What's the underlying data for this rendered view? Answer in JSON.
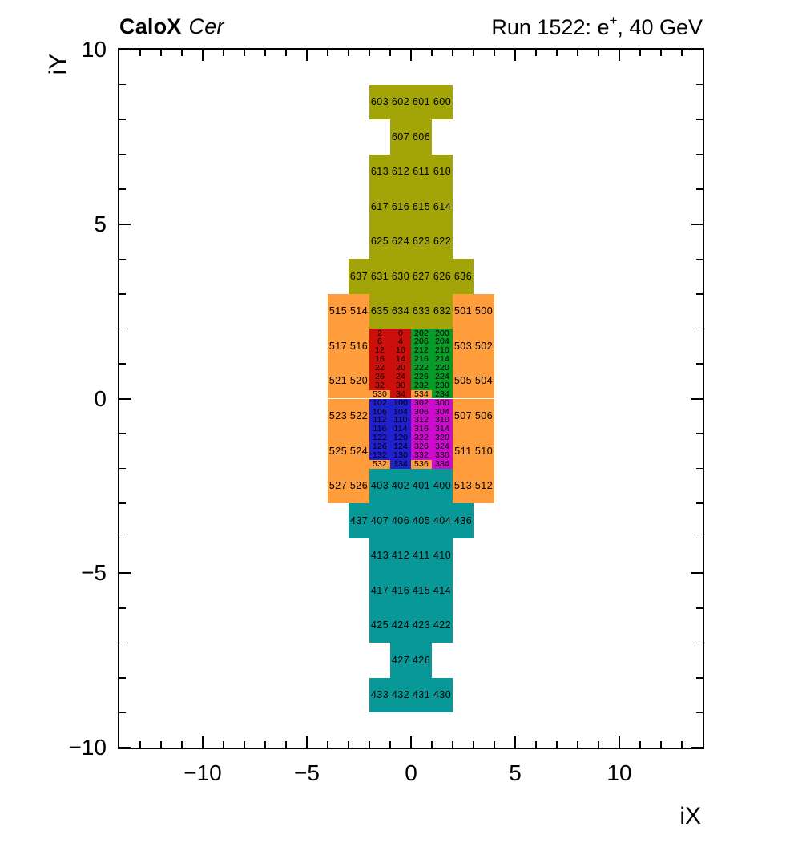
{
  "chart_data": {
    "type": "heatmap",
    "title_left_bold": "CaloX",
    "title_left_italic": "Cer",
    "title_right": {
      "pre": "Run 1522: e",
      "sup": "+",
      "post": ", 40 GeV"
    },
    "xlabel": "iX",
    "ylabel": "iY",
    "xlim": [
      -14,
      14
    ],
    "ylim": [
      -10,
      10
    ],
    "x_major_ticks": [
      -10,
      -5,
      0,
      5,
      10
    ],
    "y_major_ticks": [
      -10,
      -5,
      0,
      5,
      10
    ],
    "x_tick_labels": [
      "−10",
      "−5",
      "0",
      "5",
      "10"
    ],
    "y_tick_labels": [
      "−10",
      "−5",
      "0",
      "5",
      "10"
    ],
    "minor_tick_step": 1,
    "grid": false,
    "background": "#ffffff",
    "cell_text_color": "#000000",
    "frame_color": "#000000",
    "groups": [
      {
        "name": "upper-tower-olive",
        "color": "#a2a408",
        "cells": [
          [
            "603",
            -2,
            8,
            1,
            1
          ],
          [
            "602",
            -1,
            8,
            1,
            1
          ],
          [
            "601",
            0,
            8,
            1,
            1
          ],
          [
            "600",
            1,
            8,
            1,
            1
          ],
          [
            "607",
            -1,
            7,
            1,
            1
          ],
          [
            "606",
            0,
            7,
            1,
            1
          ],
          [
            "613",
            -2,
            6,
            1,
            1
          ],
          [
            "612",
            -1,
            6,
            1,
            1
          ],
          [
            "611",
            0,
            6,
            1,
            1
          ],
          [
            "610",
            1,
            6,
            1,
            1
          ],
          [
            "617",
            -2,
            5,
            1,
            1
          ],
          [
            "616",
            -1,
            5,
            1,
            1
          ],
          [
            "615",
            0,
            5,
            1,
            1
          ],
          [
            "614",
            1,
            5,
            1,
            1
          ],
          [
            "625",
            -2,
            4,
            1,
            1
          ],
          [
            "624",
            -1,
            4,
            1,
            1
          ],
          [
            "623",
            0,
            4,
            1,
            1
          ],
          [
            "622",
            1,
            4,
            1,
            1
          ],
          [
            "637",
            -3,
            3,
            1,
            1
          ],
          [
            "631",
            -2,
            3,
            1,
            1
          ],
          [
            "630",
            -1,
            3,
            1,
            1
          ],
          [
            "627",
            0,
            3,
            1,
            1
          ],
          [
            "626",
            1,
            3,
            1,
            1
          ],
          [
            "636",
            2,
            3,
            1,
            1
          ],
          [
            "635",
            -2,
            2,
            1,
            1
          ],
          [
            "634",
            -1,
            2,
            1,
            1
          ],
          [
            "633",
            0,
            2,
            1,
            1
          ],
          [
            "632",
            1,
            2,
            1,
            1
          ]
        ]
      },
      {
        "name": "side-columns-orange",
        "color": "#ff9c3c",
        "cells": [
          [
            "515",
            -4,
            2,
            1,
            1
          ],
          [
            "514",
            -3,
            2,
            1,
            1
          ],
          [
            "501",
            2,
            2,
            1,
            1
          ],
          [
            "500",
            3,
            2,
            1,
            1
          ],
          [
            "517",
            -4,
            1,
            1,
            1
          ],
          [
            "516",
            -3,
            1,
            1,
            1
          ],
          [
            "503",
            2,
            1,
            1,
            1
          ],
          [
            "502",
            3,
            1,
            1,
            1
          ],
          [
            "521",
            -4,
            0,
            1,
            1
          ],
          [
            "520",
            -3,
            0,
            1,
            1
          ],
          [
            "505",
            2,
            0,
            1,
            1
          ],
          [
            "504",
            3,
            0,
            1,
            1
          ],
          [
            "523",
            -4,
            -1,
            1,
            1
          ],
          [
            "522",
            -3,
            -1,
            1,
            1
          ],
          [
            "507",
            2,
            -1,
            1,
            1
          ],
          [
            "506",
            3,
            -1,
            1,
            1
          ],
          [
            "525",
            -4,
            -2,
            1,
            1
          ],
          [
            "524",
            -3,
            -2,
            1,
            1
          ],
          [
            "511",
            2,
            -2,
            1,
            1
          ],
          [
            "510",
            3,
            -2,
            1,
            1
          ],
          [
            "527",
            -4,
            -3,
            1,
            1
          ],
          [
            "526",
            -3,
            -3,
            1,
            1
          ],
          [
            "513",
            2,
            -3,
            1,
            1
          ],
          [
            "512",
            3,
            -3,
            1,
            1
          ],
          [
            "530",
            -2,
            0,
            1,
            0.25
          ],
          [
            "534",
            0,
            0,
            1,
            0.25
          ],
          [
            "532",
            -2,
            -2,
            1,
            0.25
          ],
          [
            "536",
            0,
            -2,
            1,
            0.25
          ]
        ]
      },
      {
        "name": "fine-grid-red",
        "color": "#cc0f0a",
        "cells": [
          [
            "2",
            -2,
            1.75,
            1,
            0.25
          ],
          [
            "0",
            -1,
            1.75,
            1,
            0.25
          ],
          [
            "6",
            -2,
            1.5,
            1,
            0.25
          ],
          [
            "4",
            -1,
            1.5,
            1,
            0.25
          ],
          [
            "12",
            -2,
            1.25,
            1,
            0.25
          ],
          [
            "10",
            -1,
            1.25,
            1,
            0.25
          ],
          [
            "16",
            -2,
            1,
            1,
            0.25
          ],
          [
            "14",
            -1,
            1,
            1,
            0.25
          ],
          [
            "22",
            -2,
            0.75,
            1,
            0.25
          ],
          [
            "20",
            -1,
            0.75,
            1,
            0.25
          ],
          [
            "26",
            -2,
            0.5,
            1,
            0.25
          ],
          [
            "24",
            -1,
            0.5,
            1,
            0.25
          ],
          [
            "32",
            -2,
            0.25,
            1,
            0.25
          ],
          [
            "30",
            -1,
            0.25,
            1,
            0.25
          ],
          [
            "34",
            -1,
            0,
            1,
            0.25
          ]
        ]
      },
      {
        "name": "fine-grid-green",
        "color": "#089b28",
        "cells": [
          [
            "202",
            0,
            1.75,
            1,
            0.25
          ],
          [
            "200",
            1,
            1.75,
            1,
            0.25
          ],
          [
            "206",
            0,
            1.5,
            1,
            0.25
          ],
          [
            "204",
            1,
            1.5,
            1,
            0.25
          ],
          [
            "212",
            0,
            1.25,
            1,
            0.25
          ],
          [
            "210",
            1,
            1.25,
            1,
            0.25
          ],
          [
            "216",
            0,
            1,
            1,
            0.25
          ],
          [
            "214",
            1,
            1,
            1,
            0.25
          ],
          [
            "222",
            0,
            0.75,
            1,
            0.25
          ],
          [
            "220",
            1,
            0.75,
            1,
            0.25
          ],
          [
            "226",
            0,
            0.5,
            1,
            0.25
          ],
          [
            "224",
            1,
            0.5,
            1,
            0.25
          ],
          [
            "232",
            0,
            0.25,
            1,
            0.25
          ],
          [
            "230",
            1,
            0.25,
            1,
            0.25
          ],
          [
            "234",
            1,
            0,
            1,
            0.25
          ]
        ]
      },
      {
        "name": "fine-grid-blue",
        "color": "#2020cc",
        "cells": [
          [
            "102",
            -2,
            -0.25,
            1,
            0.25
          ],
          [
            "100",
            -1,
            -0.25,
            1,
            0.25
          ],
          [
            "106",
            -2,
            -0.5,
            1,
            0.25
          ],
          [
            "104",
            -1,
            -0.5,
            1,
            0.25
          ],
          [
            "112",
            -2,
            -0.75,
            1,
            0.25
          ],
          [
            "110",
            -1,
            -0.75,
            1,
            0.25
          ],
          [
            "116",
            -2,
            -1,
            1,
            0.25
          ],
          [
            "114",
            -1,
            -1,
            1,
            0.25
          ],
          [
            "122",
            -2,
            -1.25,
            1,
            0.25
          ],
          [
            "120",
            -1,
            -1.25,
            1,
            0.25
          ],
          [
            "126",
            -2,
            -1.5,
            1,
            0.25
          ],
          [
            "124",
            -1,
            -1.5,
            1,
            0.25
          ],
          [
            "132",
            -2,
            -1.75,
            1,
            0.25
          ],
          [
            "130",
            -1,
            -1.75,
            1,
            0.25
          ],
          [
            "134",
            -1,
            -2,
            1,
            0.25
          ]
        ]
      },
      {
        "name": "fine-grid-magenta",
        "color": "#cc0ccc",
        "cells": [
          [
            "302",
            0,
            -0.25,
            1,
            0.25
          ],
          [
            "300",
            1,
            -0.25,
            1,
            0.25
          ],
          [
            "306",
            0,
            -0.5,
            1,
            0.25
          ],
          [
            "304",
            1,
            -0.5,
            1,
            0.25
          ],
          [
            "312",
            0,
            -0.75,
            1,
            0.25
          ],
          [
            "310",
            1,
            -0.75,
            1,
            0.25
          ],
          [
            "316",
            0,
            -1,
            1,
            0.25
          ],
          [
            "314",
            1,
            -1,
            1,
            0.25
          ],
          [
            "322",
            0,
            -1.25,
            1,
            0.25
          ],
          [
            "320",
            1,
            -1.25,
            1,
            0.25
          ],
          [
            "326",
            0,
            -1.5,
            1,
            0.25
          ],
          [
            "324",
            1,
            -1.5,
            1,
            0.25
          ],
          [
            "332",
            0,
            -1.75,
            1,
            0.25
          ],
          [
            "330",
            1,
            -1.75,
            1,
            0.25
          ],
          [
            "334",
            1,
            -2,
            1,
            0.25
          ]
        ]
      },
      {
        "name": "lower-tower-teal",
        "color": "#089898",
        "cells": [
          [
            "403",
            -2,
            -3,
            1,
            1
          ],
          [
            "402",
            -1,
            -3,
            1,
            1
          ],
          [
            "401",
            0,
            -3,
            1,
            1
          ],
          [
            "400",
            1,
            -3,
            1,
            1
          ],
          [
            "437",
            -3,
            -4,
            1,
            1
          ],
          [
            "407",
            -2,
            -4,
            1,
            1
          ],
          [
            "406",
            -1,
            -4,
            1,
            1
          ],
          [
            "405",
            0,
            -4,
            1,
            1
          ],
          [
            "404",
            1,
            -4,
            1,
            1
          ],
          [
            "436",
            2,
            -4,
            1,
            1
          ],
          [
            "413",
            -2,
            -5,
            1,
            1
          ],
          [
            "412",
            -1,
            -5,
            1,
            1
          ],
          [
            "411",
            0,
            -5,
            1,
            1
          ],
          [
            "410",
            1,
            -5,
            1,
            1
          ],
          [
            "417",
            -2,
            -6,
            1,
            1
          ],
          [
            "416",
            -1,
            -6,
            1,
            1
          ],
          [
            "415",
            0,
            -6,
            1,
            1
          ],
          [
            "414",
            1,
            -6,
            1,
            1
          ],
          [
            "425",
            -2,
            -7,
            1,
            1
          ],
          [
            "424",
            -1,
            -7,
            1,
            1
          ],
          [
            "423",
            0,
            -7,
            1,
            1
          ],
          [
            "422",
            1,
            -7,
            1,
            1
          ],
          [
            "427",
            -1,
            -8,
            1,
            1
          ],
          [
            "426",
            0,
            -8,
            1,
            1
          ],
          [
            "433",
            -2,
            -9,
            1,
            1
          ],
          [
            "432",
            -1,
            -9,
            1,
            1
          ],
          [
            "431",
            0,
            -9,
            1,
            1
          ],
          [
            "430",
            1,
            -9,
            1,
            1
          ]
        ]
      }
    ]
  }
}
